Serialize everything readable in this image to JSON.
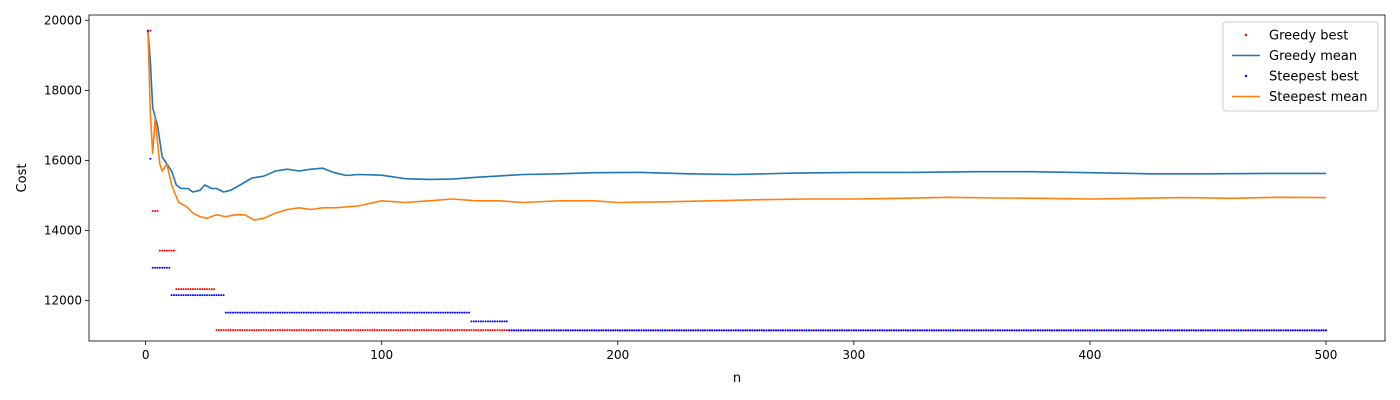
{
  "chart_data": {
    "type": "line",
    "title": "",
    "xlabel": "n",
    "ylabel": "Cost",
    "xlim": [
      -24,
      525
    ],
    "ylim": [
      10850,
      20150
    ],
    "xticks": [
      0,
      100,
      200,
      300,
      400,
      500
    ],
    "yticks": [
      12000,
      14000,
      16000,
      18000,
      20000
    ],
    "grid": false,
    "legend_position": "top-right",
    "colors": {
      "greedy_best": "#ff0000",
      "greedy_mean": "#1f77b4",
      "steepest_best": "#0000ff",
      "steepest_mean": "#ff7f0e"
    },
    "series": [
      {
        "name": "Greedy best",
        "kind": "points",
        "steps": [
          [
            1,
            19700
          ],
          [
            3,
            14560
          ],
          [
            6,
            13430
          ],
          [
            13,
            12330
          ],
          [
            30,
            11160
          ]
        ],
        "x_end": 500
      },
      {
        "name": "Greedy mean",
        "kind": "line",
        "points": [
          [
            1,
            19700
          ],
          [
            2,
            18800
          ],
          [
            3,
            17500
          ],
          [
            5,
            17000
          ],
          [
            7,
            16100
          ],
          [
            9,
            15900
          ],
          [
            11,
            15700
          ],
          [
            13,
            15300
          ],
          [
            15,
            15200
          ],
          [
            18,
            15200
          ],
          [
            20,
            15100
          ],
          [
            23,
            15150
          ],
          [
            25,
            15300
          ],
          [
            28,
            15200
          ],
          [
            30,
            15200
          ],
          [
            33,
            15100
          ],
          [
            36,
            15150
          ],
          [
            40,
            15300
          ],
          [
            45,
            15500
          ],
          [
            50,
            15550
          ],
          [
            55,
            15700
          ],
          [
            60,
            15750
          ],
          [
            65,
            15700
          ],
          [
            70,
            15750
          ],
          [
            75,
            15780
          ],
          [
            80,
            15650
          ],
          [
            85,
            15570
          ],
          [
            90,
            15600
          ],
          [
            100,
            15580
          ],
          [
            110,
            15480
          ],
          [
            120,
            15460
          ],
          [
            130,
            15470
          ],
          [
            140,
            15520
          ],
          [
            150,
            15560
          ],
          [
            160,
            15600
          ],
          [
            175,
            15620
          ],
          [
            190,
            15650
          ],
          [
            210,
            15660
          ],
          [
            230,
            15620
          ],
          [
            250,
            15600
          ],
          [
            275,
            15640
          ],
          [
            300,
            15660
          ],
          [
            325,
            15660
          ],
          [
            350,
            15680
          ],
          [
            375,
            15680
          ],
          [
            400,
            15650
          ],
          [
            425,
            15620
          ],
          [
            450,
            15620
          ],
          [
            475,
            15630
          ],
          [
            500,
            15630
          ]
        ]
      },
      {
        "name": "Steepest best",
        "kind": "points",
        "steps": [
          [
            1,
            19700
          ],
          [
            2,
            16050
          ],
          [
            3,
            12940
          ],
          [
            11,
            12160
          ],
          [
            34,
            11660
          ],
          [
            138,
            11410
          ],
          [
            154,
            11150
          ]
        ],
        "x_end": 500
      },
      {
        "name": "Steepest mean",
        "kind": "line",
        "points": [
          [
            1,
            19650
          ],
          [
            2,
            17300
          ],
          [
            3,
            16200
          ],
          [
            4,
            17200
          ],
          [
            6,
            15900
          ],
          [
            7,
            15700
          ],
          [
            9,
            15900
          ],
          [
            11,
            15300
          ],
          [
            14,
            14800
          ],
          [
            17,
            14700
          ],
          [
            20,
            14500
          ],
          [
            23,
            14400
          ],
          [
            26,
            14350
          ],
          [
            30,
            14450
          ],
          [
            34,
            14400
          ],
          [
            38,
            14450
          ],
          [
            42,
            14450
          ],
          [
            46,
            14300
          ],
          [
            50,
            14350
          ],
          [
            55,
            14500
          ],
          [
            60,
            14600
          ],
          [
            65,
            14650
          ],
          [
            70,
            14600
          ],
          [
            75,
            14650
          ],
          [
            80,
            14650
          ],
          [
            90,
            14700
          ],
          [
            100,
            14850
          ],
          [
            110,
            14800
          ],
          [
            120,
            14850
          ],
          [
            130,
            14900
          ],
          [
            140,
            14850
          ],
          [
            150,
            14850
          ],
          [
            160,
            14800
          ],
          [
            175,
            14850
          ],
          [
            190,
            14850
          ],
          [
            200,
            14800
          ],
          [
            220,
            14820
          ],
          [
            240,
            14850
          ],
          [
            260,
            14880
          ],
          [
            280,
            14900
          ],
          [
            300,
            14900
          ],
          [
            320,
            14920
          ],
          [
            340,
            14950
          ],
          [
            360,
            14930
          ],
          [
            380,
            14920
          ],
          [
            400,
            14900
          ],
          [
            420,
            14920
          ],
          [
            440,
            14940
          ],
          [
            460,
            14920
          ],
          [
            480,
            14950
          ],
          [
            500,
            14940
          ]
        ]
      }
    ]
  }
}
